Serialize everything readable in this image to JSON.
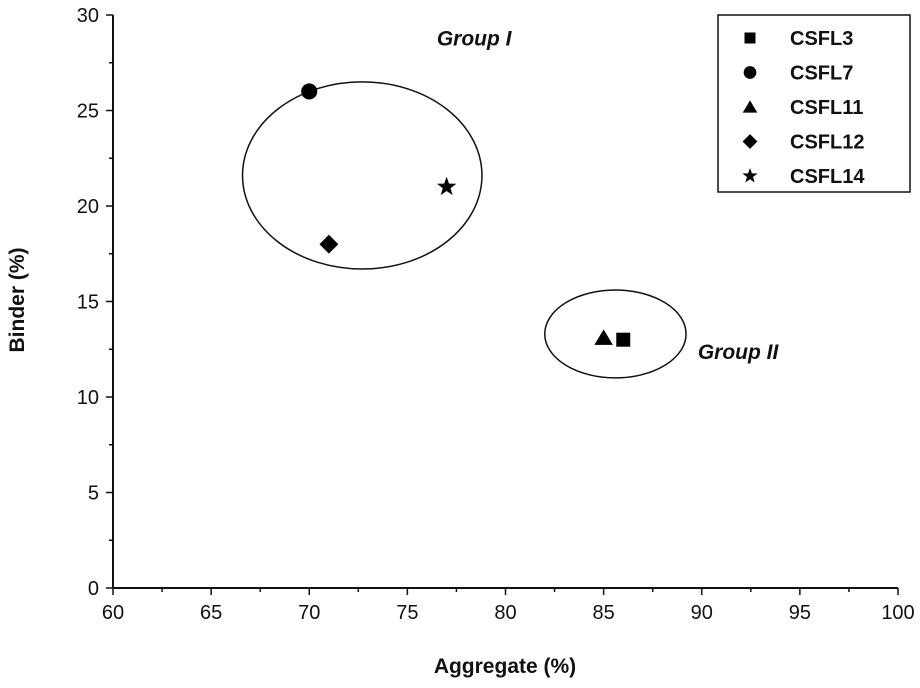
{
  "chart_data": {
    "type": "scatter",
    "xlabel": "Aggregate (%)",
    "ylabel": "Binder (%)",
    "xlim": [
      60,
      100
    ],
    "ylim": [
      0,
      30
    ],
    "xticks": [
      60,
      65,
      70,
      75,
      80,
      85,
      90,
      95,
      100
    ],
    "yticks": [
      0,
      5,
      10,
      15,
      20,
      25,
      30
    ],
    "grid": false,
    "legend_position": "top-right",
    "series": [
      {
        "name": "CSFL3",
        "marker": "square",
        "points": [
          {
            "x": 86,
            "y": 13
          }
        ]
      },
      {
        "name": "CSFL7",
        "marker": "circle",
        "points": [
          {
            "x": 70,
            "y": 26
          }
        ]
      },
      {
        "name": "CSFL11",
        "marker": "triangle",
        "points": [
          {
            "x": 85,
            "y": 13.1
          }
        ]
      },
      {
        "name": "CSFL12",
        "marker": "diamond",
        "points": [
          {
            "x": 71,
            "y": 18
          }
        ]
      },
      {
        "name": "CSFL14",
        "marker": "star",
        "points": [
          {
            "x": 77,
            "y": 21
          }
        ]
      }
    ],
    "groups": [
      {
        "label": "Group I",
        "center": {
          "x": 72.7,
          "y": 21.6
        },
        "radius": {
          "x": 6.1,
          "y": 4.9
        }
      },
      {
        "label": "Group II",
        "center": {
          "x": 85.6,
          "y": 13.3
        },
        "radius": {
          "x": 3.6,
          "y": 2.3
        }
      }
    ]
  }
}
